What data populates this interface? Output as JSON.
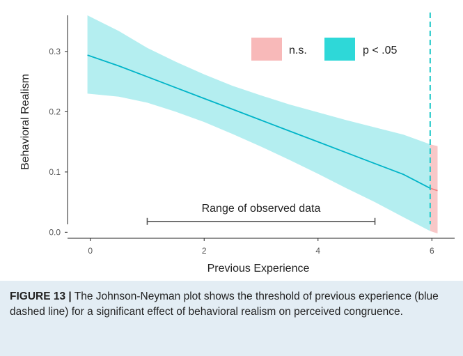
{
  "chart_data": {
    "type": "line",
    "xlabel": "Previous Experience",
    "ylabel": "Behavioral Realism",
    "xlim": [
      -0.4,
      6.4
    ],
    "ylim": [
      -0.01,
      0.36
    ],
    "x_ticks": [
      0,
      2,
      4,
      6
    ],
    "x_tick_labels": [
      "0",
      "2",
      "4",
      "6"
    ],
    "y_ticks": [
      0.0,
      0.1,
      0.2,
      0.3
    ],
    "y_tick_labels": [
      "0.0",
      "0.1",
      "0.2",
      "0.3"
    ],
    "grid": false,
    "legend": {
      "placement": "top-right",
      "entries": [
        {
          "label": "n.s.",
          "color": "#f8b9b9"
        },
        {
          "label": "p < .05",
          "color": "#2ed8d8"
        }
      ]
    },
    "series": [
      {
        "label": "p < .05",
        "color": "#00b4c8",
        "band_color": "#b4eef0",
        "x": [
          -0.05,
          0.5,
          1,
          1.5,
          2,
          2.5,
          3,
          3.5,
          4,
          4.5,
          5,
          5.5,
          5.97
        ],
        "y": [
          0.294,
          0.276,
          0.258,
          0.24,
          0.222,
          0.204,
          0.186,
          0.168,
          0.15,
          0.132,
          0.114,
          0.096,
          0.073
        ],
        "lower": [
          0.23,
          0.225,
          0.215,
          0.2,
          0.183,
          0.163,
          0.142,
          0.12,
          0.097,
          0.073,
          0.05,
          0.025,
          0.002
        ],
        "upper": [
          0.36,
          0.334,
          0.306,
          0.283,
          0.262,
          0.243,
          0.227,
          0.212,
          0.199,
          0.186,
          0.174,
          0.162,
          0.146
        ]
      },
      {
        "label": "n.s.",
        "color": "#f08080",
        "band_color": "#f8c8c8",
        "x": [
          5.97,
          6.1
        ],
        "y": [
          0.073,
          0.069
        ],
        "lower": [
          0.002,
          -0.002
        ],
        "upper": [
          0.146,
          0.143
        ]
      }
    ],
    "threshold": {
      "x": 5.97,
      "color": "#1ec8c8"
    },
    "annotation": {
      "text": "Range of observed data",
      "x_start": 1,
      "x_end": 5,
      "y": 0.018
    }
  },
  "caption": {
    "label": "FIGURE 13 |",
    "text": " The Johnson-Neyman plot shows the threshold of previous experience (blue dashed line) for a significant effect of behavioral realism on perceived congruence."
  }
}
